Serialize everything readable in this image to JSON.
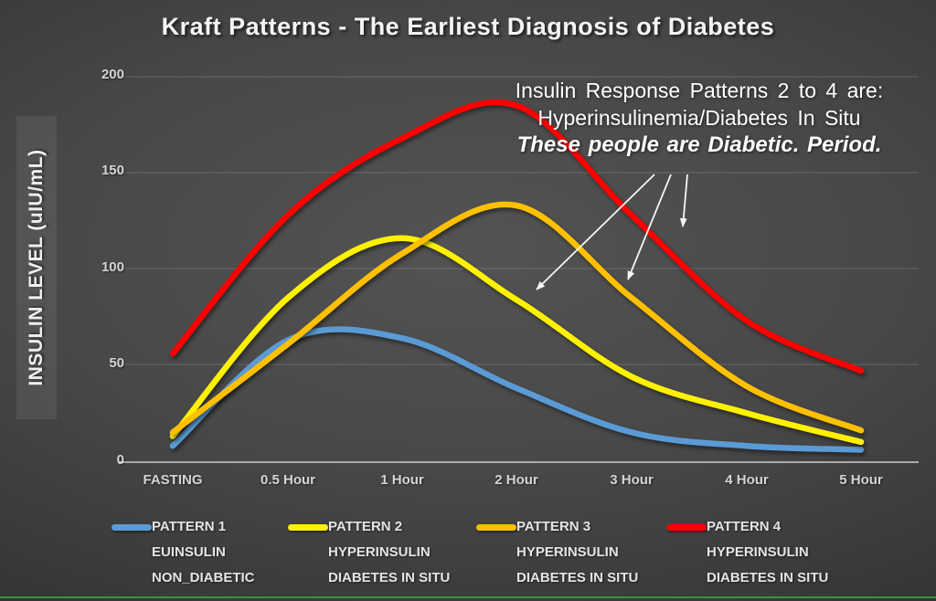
{
  "title": "Kraft Patterns - The Earliest Diagnosis of Diabetes",
  "y_axis": {
    "label": "INSULIN LEVEL (uIU/mL)",
    "ticks": [
      "200",
      "150",
      "100",
      "50",
      "0"
    ]
  },
  "x_axis": {
    "ticks": [
      "FASTING",
      "0.5 Hour",
      "1 Hour",
      "2 Hour",
      "3 Hour",
      "4 Hour",
      "5 Hour"
    ]
  },
  "annotation": {
    "line1": "Insulin Response Patterns 2 to 4 are:",
    "line2": "Hyperinsulinemia/Diabetes In Situ",
    "line3": "These people are Diabetic. Period."
  },
  "legend": [
    {
      "label": "PATTERN 1",
      "line2": "EUINSULIN",
      "line3": "NON_DIABETIC",
      "color": "#5B9BD5"
    },
    {
      "label": "PATTERN 2",
      "line2": "HYPERINSULIN",
      "line3": "DIABETES IN SITU",
      "color": "#FFF100"
    },
    {
      "label": "PATTERN 3",
      "line2": "HYPERINSULIN",
      "line3": "DIABETES IN SITU",
      "color": "#FFC000"
    },
    {
      "label": "PATTERN 4",
      "line2": "HYPERINSULIN",
      "line3": "DIABETES IN SITU",
      "color": "#FF0000"
    }
  ],
  "colors": {
    "background_center": "#535353",
    "background_edge": "#212121",
    "gridline": "rgba(255,255,255,0.17)",
    "axis_line": "rgba(255,255,255,0.55)",
    "bottom_accent": "#389538",
    "text": "#ffffff"
  },
  "chart_data": {
    "type": "line",
    "title": "Kraft Patterns - The Earliest Diagnosis of Diabetes",
    "xlabel": "",
    "ylabel": "INSULIN LEVEL (uIU/mL)",
    "ylim": [
      0,
      200
    ],
    "grid": true,
    "legend_position": "bottom",
    "categories": [
      "FASTING",
      "0.5 Hour",
      "1 Hour",
      "2 Hour",
      "3 Hour",
      "4 Hour",
      "5 Hour"
    ],
    "series": [
      {
        "name": "PATTERN 1 EUINSULIN NON_DIABETIC",
        "color": "#5B9BD5",
        "values": [
          8,
          63,
          64,
          38,
          15,
          8,
          6
        ]
      },
      {
        "name": "PATTERN 2 HYPERINSULIN DIABETES IN SITU",
        "color": "#FFF100",
        "values": [
          13,
          85,
          116,
          84,
          44,
          25,
          10
        ]
      },
      {
        "name": "PATTERN 3 HYPERINSULIN DIABETES IN SITU",
        "color": "#FFC000",
        "values": [
          15,
          61,
          108,
          133,
          85,
          39,
          16
        ]
      },
      {
        "name": "PATTERN 4 HYPERINSULIN DIABETES IN SITU",
        "color": "#FF0000",
        "values": [
          56,
          128,
          168,
          185,
          128,
          73,
          47
        ]
      }
    ],
    "annotations": [
      "Insulin Response Patterns 2 to 4 are:",
      "Hyperinsulinemia/Diabetes In Situ",
      "These people are Diabetic. Period."
    ]
  }
}
